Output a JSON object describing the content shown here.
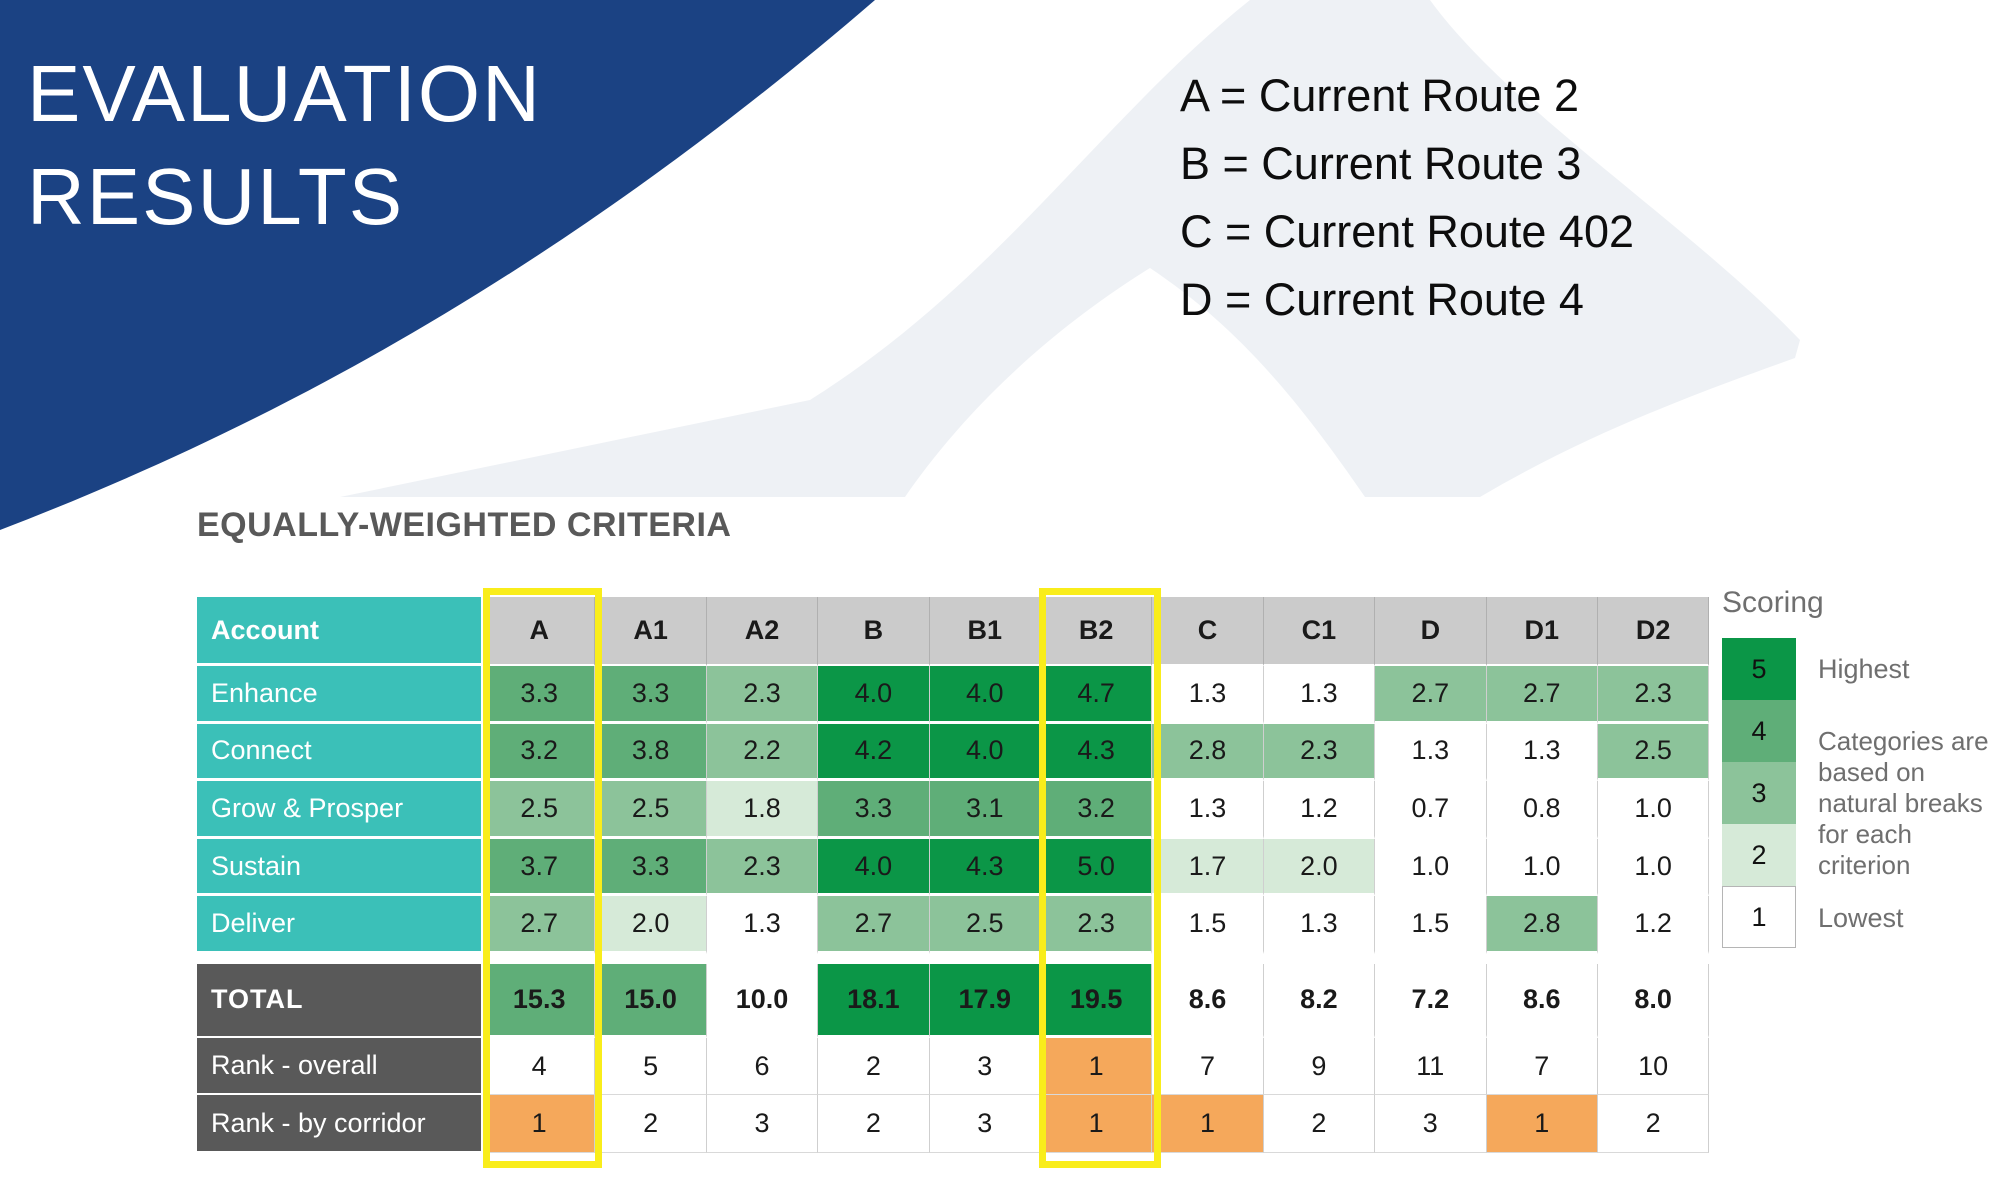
{
  "slide": {
    "title_lines": [
      "EVALUATION",
      "RESULTS"
    ],
    "route_legend": [
      "A = Current Route 2",
      "B = Current Route 3",
      "C = Current Route 402",
      "D = Current Route 4"
    ],
    "section_title": "EQUALLY-WEIGHTED CRITERIA"
  },
  "table": {
    "header": {
      "label": "Account",
      "columns": [
        "A",
        "A1",
        "A2",
        "B",
        "B1",
        "B2",
        "C",
        "C1",
        "D",
        "D1",
        "D2"
      ]
    },
    "highlighted_columns": [
      "A",
      "B2"
    ],
    "criteria_rows": [
      {
        "label": "Enhance",
        "values": [
          "3.3",
          "3.3",
          "2.3",
          "4.0",
          "4.0",
          "4.7",
          "1.3",
          "1.3",
          "2.7",
          "2.7",
          "2.3"
        ],
        "levels": [
          4,
          4,
          3,
          5,
          5,
          5,
          1,
          1,
          3,
          3,
          3
        ]
      },
      {
        "label": "Connect",
        "values": [
          "3.2",
          "3.8",
          "2.2",
          "4.2",
          "4.0",
          "4.3",
          "2.8",
          "2.3",
          "1.3",
          "1.3",
          "2.5"
        ],
        "levels": [
          4,
          4,
          3,
          5,
          5,
          5,
          3,
          3,
          1,
          1,
          3
        ]
      },
      {
        "label": "Grow & Prosper",
        "values": [
          "2.5",
          "2.5",
          "1.8",
          "3.3",
          "3.1",
          "3.2",
          "1.3",
          "1.2",
          "0.7",
          "0.8",
          "1.0"
        ],
        "levels": [
          3,
          3,
          2,
          4,
          4,
          4,
          1,
          1,
          1,
          1,
          1
        ]
      },
      {
        "label": "Sustain",
        "values": [
          "3.7",
          "3.3",
          "2.3",
          "4.0",
          "4.3",
          "5.0",
          "1.7",
          "2.0",
          "1.0",
          "1.0",
          "1.0"
        ],
        "levels": [
          4,
          4,
          3,
          5,
          5,
          5,
          2,
          2,
          1,
          1,
          1
        ]
      },
      {
        "label": "Deliver",
        "values": [
          "2.7",
          "2.0",
          "1.3",
          "2.7",
          "2.5",
          "2.3",
          "1.5",
          "1.3",
          "1.5",
          "2.8",
          "1.2"
        ],
        "levels": [
          3,
          2,
          1,
          3,
          3,
          3,
          1,
          1,
          1,
          3,
          1
        ]
      }
    ],
    "total_row": {
      "label": "TOTAL",
      "values": [
        "15.3",
        "15.0",
        "10.0",
        "18.1",
        "17.9",
        "19.5",
        "8.6",
        "8.2",
        "7.2",
        "8.6",
        "8.0"
      ],
      "levels": [
        4,
        4,
        1,
        5,
        5,
        5,
        1,
        1,
        1,
        1,
        1
      ]
    },
    "rank_rows": [
      {
        "label": "Rank - overall",
        "values": [
          "4",
          "5",
          "6",
          "2",
          "3",
          "1",
          "7",
          "9",
          "11",
          "7",
          "10"
        ],
        "highlight": [
          false,
          false,
          false,
          false,
          false,
          true,
          false,
          false,
          false,
          false,
          false
        ]
      },
      {
        "label": "Rank - by corridor",
        "values": [
          "1",
          "2",
          "3",
          "2",
          "3",
          "1",
          "1",
          "2",
          "3",
          "1",
          "2"
        ],
        "highlight": [
          true,
          false,
          false,
          false,
          false,
          true,
          true,
          false,
          false,
          true,
          false
        ]
      }
    ]
  },
  "scoring": {
    "title": "Scoring",
    "boxes": [
      {
        "value": "5",
        "level": 5
      },
      {
        "value": "4",
        "level": 4
      },
      {
        "value": "3",
        "level": 3
      },
      {
        "value": "2",
        "level": 2
      },
      {
        "value": "1",
        "level": 1
      }
    ],
    "highest_label": "Highest",
    "note": "Categories are based on natural breaks for each criterion",
    "lowest_label": "Lowest"
  },
  "colors": {
    "navy": "#1b4283",
    "arch_gray": "#eef1f5",
    "teal": "#3bc0b8",
    "header_gray": "#cbcbcb",
    "dark_label": "#595959",
    "score_levels": {
      "1": "#ffffff",
      "2": "#d6ead8",
      "3": "#8cc39a",
      "4": "#5fae78",
      "5": "#0b9647"
    },
    "rank_highlight": "#f5a85b",
    "column_highlight": "#f9ed1b",
    "section_title_text": "#595959",
    "scoring_text": "#6f6f6f"
  }
}
